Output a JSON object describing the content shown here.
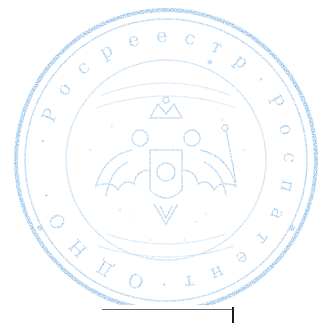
{
  "seal": {
    "ring_text": "Роспатент",
    "stamp_color": "#3a8fd8"
  },
  "document_fragment": {
    "visible": true
  }
}
